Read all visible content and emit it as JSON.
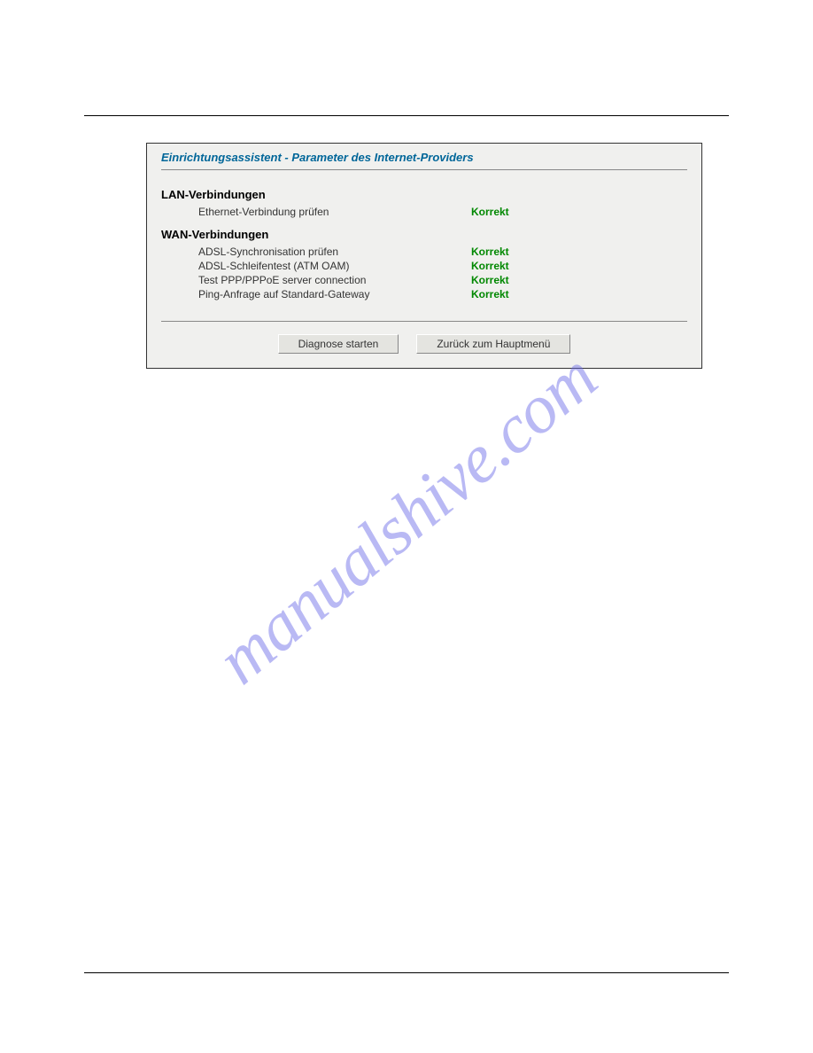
{
  "dialog": {
    "title": "Einrichtungsassistent - Parameter des Internet-Providers",
    "sections": {
      "lan": {
        "heading": "LAN-Verbindungen",
        "rows": [
          {
            "label": "Ethernet-Verbindung prüfen",
            "status": "Korrekt"
          }
        ]
      },
      "wan": {
        "heading": "WAN-Verbindungen",
        "rows": [
          {
            "label": "ADSL-Synchronisation prüfen",
            "status": "Korrekt"
          },
          {
            "label": "ADSL-Schleifentest (ATM OAM)",
            "status": "Korrekt"
          },
          {
            "label": "Test PPP/PPPoE server connection",
            "status": "Korrekt"
          },
          {
            "label": "Ping-Anfrage auf Standard-Gateway",
            "status": "Korrekt"
          }
        ]
      }
    },
    "buttons": {
      "diagnose": "Diagnose starten",
      "back": "Zurück zum Hauptmenü"
    }
  },
  "watermark": "manualshive.com",
  "colors": {
    "title": "#006699",
    "status_ok": "#008800",
    "panel_bg": "#f0f0ee",
    "rule": "#888888"
  }
}
